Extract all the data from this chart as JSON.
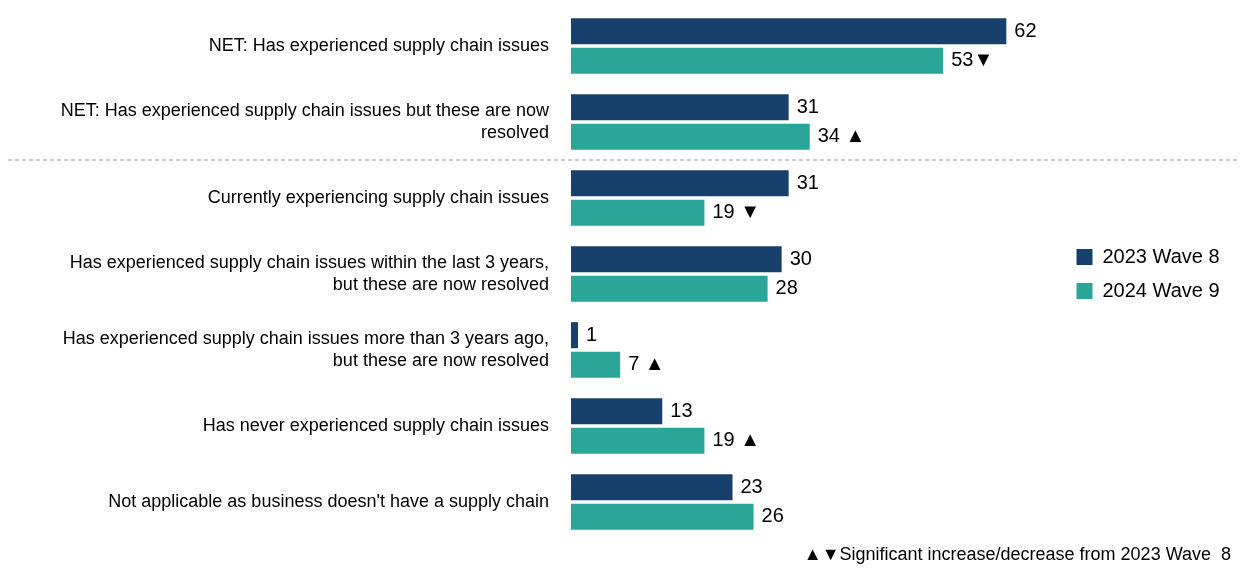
{
  "chart_data": {
    "type": "bar",
    "orientation": "horizontal",
    "categories": [
      "NET: Has experienced supply chain issues",
      "NET: Has experienced supply chain issues but these are now resolved",
      "Currently experiencing supply chain issues",
      "Has experienced supply chain issues within the last 3 years, but these are now resolved",
      "Has experienced supply chain issues more than 3 years ago, but these are now resolved",
      "Has never experienced supply chain issues",
      "Not applicable as business doesn't have a supply chain"
    ],
    "series": [
      {
        "name": "2023 Wave 8",
        "color": "#17406d",
        "values": [
          62,
          31,
          31,
          30,
          1,
          13,
          23
        ]
      },
      {
        "name": "2024 Wave 9",
        "color": "#2aa597",
        "values": [
          53,
          34,
          19,
          28,
          7,
          19,
          26
        ],
        "value_labels": [
          "53▼",
          "34 ▲",
          "19 ▼",
          "28",
          "7 ▲",
          "19 ▲",
          "26"
        ]
      }
    ],
    "data_labels": true,
    "legend": "right",
    "annotations": [
      "▲▼Significant increase/decrease from 2023 Wave  8"
    ]
  }
}
